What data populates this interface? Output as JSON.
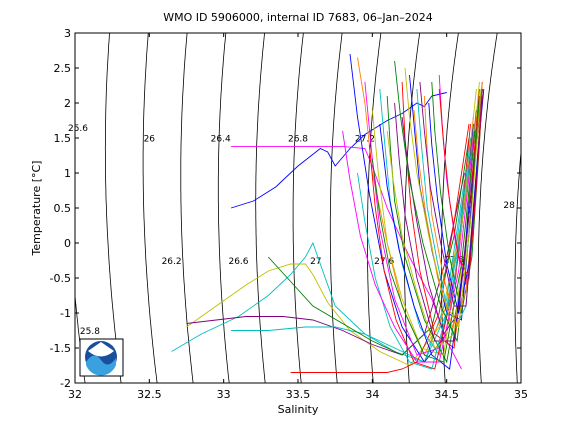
{
  "chart_data": {
    "type": "line",
    "title": "WMO ID 5906000, internal ID 7683, 06–Jan–2024",
    "xlabel": "Salinity",
    "ylabel": "Temperature [°C]",
    "xlim": [
      32,
      35
    ],
    "ylim": [
      -2,
      3
    ],
    "xticks": [
      32,
      32.5,
      33,
      33.5,
      34,
      34.5,
      35
    ],
    "yticks": [
      -2,
      -1.5,
      -1,
      -0.5,
      0,
      0.5,
      1,
      1.5,
      2,
      2.5,
      3
    ],
    "grid": false,
    "density_contours": [
      {
        "label": "25.6",
        "x": 32.02,
        "y": 1.6
      },
      {
        "label": "25.8",
        "x": 32.1,
        "y": -1.3
      },
      {
        "label": "26",
        "x": 32.5,
        "y": 1.45
      },
      {
        "label": "26.2",
        "x": 32.65,
        "y": -0.3
      },
      {
        "label": "26.4",
        "x": 32.98,
        "y": 1.45
      },
      {
        "label": "26.6",
        "x": 33.1,
        "y": -0.3
      },
      {
        "label": "26.8",
        "x": 33.5,
        "y": 1.45
      },
      {
        "label": "27",
        "x": 33.62,
        "y": -0.3
      },
      {
        "label": "27.2",
        "x": 33.95,
        "y": 1.45
      },
      {
        "label": "27.6",
        "x": 34.08,
        "y": -0.3
      },
      {
        "label": "27.8",
        "x": 34.55,
        "y": -0.28
      },
      {
        "label": "28",
        "x": 34.92,
        "y": 0.5
      }
    ],
    "logo": {
      "text": "NOAA"
    },
    "series": [
      {
        "color": "#0000ff",
        "x": [
          33.05,
          33.2,
          33.35,
          33.5,
          33.65,
          33.7,
          33.75,
          33.85,
          33.95,
          34.1,
          34.2,
          34.3,
          34.35,
          34.4,
          34.5
        ],
        "y": [
          0.5,
          0.6,
          0.8,
          1.1,
          1.35,
          1.3,
          1.1,
          1.35,
          1.55,
          1.75,
          1.85,
          2.0,
          1.95,
          2.1,
          2.15
        ]
      },
      {
        "color": "#ff00ff",
        "x": [
          33.05,
          33.3,
          33.55,
          33.8,
          33.95,
          34.0,
          34.1,
          34.25,
          34.4,
          34.5,
          34.6
        ],
        "y": [
          1.38,
          1.38,
          1.38,
          1.38,
          1.35,
          1.1,
          0.5,
          -0.2,
          -0.8,
          -1.4,
          -1.8
        ]
      },
      {
        "color": "#00bfbf",
        "x": [
          32.65,
          32.85,
          33.1,
          33.3,
          33.45,
          33.55,
          33.6,
          33.65,
          33.75,
          33.95,
          34.15,
          34.35,
          34.5,
          34.6,
          34.7
        ],
        "y": [
          -1.55,
          -1.3,
          -1.05,
          -0.75,
          -0.45,
          -0.2,
          0.0,
          -0.3,
          -0.9,
          -1.3,
          -1.55,
          -1.7,
          -1.0,
          0.5,
          1.8
        ]
      },
      {
        "color": "#bfbf00",
        "x": [
          32.75,
          32.95,
          33.15,
          33.3,
          33.45,
          33.55,
          33.6,
          33.7,
          33.85,
          34.05,
          34.25,
          34.45,
          34.6,
          34.68
        ],
        "y": [
          -1.2,
          -0.9,
          -0.6,
          -0.4,
          -0.3,
          -0.3,
          -0.45,
          -0.85,
          -1.25,
          -1.55,
          -1.75,
          -1.2,
          0.3,
          1.6
        ]
      },
      {
        "color": "#800080",
        "x": [
          32.75,
          32.95,
          33.15,
          33.4,
          33.6,
          33.8,
          34.0,
          34.2,
          34.35,
          34.5,
          34.62
        ],
        "y": [
          -1.15,
          -1.1,
          -1.05,
          -1.05,
          -1.1,
          -1.25,
          -1.45,
          -1.6,
          -1.3,
          -0.2,
          1.0
        ]
      },
      {
        "color": "#00bfbf",
        "x": [
          33.05,
          33.3,
          33.55,
          33.75,
          33.95,
          34.15,
          34.35,
          34.5,
          34.62
        ],
        "y": [
          -1.25,
          -1.25,
          -1.2,
          -1.2,
          -1.3,
          -1.5,
          -1.7,
          -0.8,
          0.9
        ]
      },
      {
        "color": "#ff0000",
        "x": [
          33.45,
          33.7,
          33.95,
          34.1,
          34.2,
          34.3,
          34.45,
          34.55,
          34.65
        ],
        "y": [
          -1.85,
          -1.85,
          -1.85,
          -1.85,
          -1.8,
          -1.7,
          -1.0,
          0.3,
          1.7
        ]
      },
      {
        "color": "#008000",
        "x": [
          33.3,
          33.45,
          33.6,
          33.8,
          34.0,
          34.2,
          34.4,
          34.55,
          34.65
        ],
        "y": [
          -0.2,
          -0.55,
          -0.9,
          -1.15,
          -1.4,
          -1.6,
          -1.2,
          0.1,
          1.5
        ]
      },
      {
        "color": "#ff8000",
        "x": [
          33.9,
          33.95,
          34.0,
          34.1,
          34.2,
          34.35,
          34.5,
          34.62,
          34.7
        ],
        "y": [
          2.65,
          2.0,
          1.0,
          0.0,
          -0.9,
          -1.6,
          -0.9,
          0.5,
          1.9
        ]
      },
      {
        "color": "#0000ff",
        "x": [
          33.85,
          33.9,
          33.98,
          34.08,
          34.2,
          34.35,
          34.5,
          34.6,
          34.68
        ],
        "y": [
          2.7,
          1.8,
          0.7,
          -0.4,
          -1.2,
          -1.7,
          -1.3,
          0.2,
          1.7
        ]
      },
      {
        "color": "#ff00ff",
        "x": [
          33.95,
          34.0,
          34.05,
          34.15,
          34.3,
          34.45,
          34.58,
          34.68
        ],
        "y": [
          2.3,
          1.2,
          0.2,
          -0.8,
          -1.6,
          -1.5,
          -0.2,
          1.8
        ]
      },
      {
        "color": "#00bfbf",
        "x": [
          34.05,
          34.08,
          34.12,
          34.2,
          34.32,
          34.45,
          34.58,
          34.7
        ],
        "y": [
          2.2,
          1.5,
          0.6,
          -0.3,
          -1.2,
          -1.6,
          0.0,
          1.8
        ]
      },
      {
        "color": "#008000",
        "x": [
          34.1,
          34.12,
          34.15,
          34.22,
          34.35,
          34.5,
          34.62,
          34.72
        ],
        "y": [
          2.1,
          1.4,
          0.6,
          -0.2,
          -1.1,
          -1.7,
          -0.3,
          2.0
        ]
      },
      {
        "color": "#bfbf00",
        "x": [
          34.0,
          34.04,
          34.1,
          34.2,
          34.33,
          34.48,
          34.6,
          34.7
        ],
        "y": [
          1.9,
          1.0,
          0.0,
          -0.8,
          -1.5,
          -1.6,
          0.2,
          2.2
        ]
      },
      {
        "color": "#ff0000",
        "x": [
          34.2,
          34.22,
          34.26,
          34.32,
          34.42,
          34.55,
          34.65,
          34.72
        ],
        "y": [
          2.3,
          1.5,
          0.5,
          -0.4,
          -1.3,
          -1.5,
          0.4,
          2.2
        ]
      },
      {
        "color": "#800080",
        "x": [
          34.15,
          34.18,
          34.22,
          34.3,
          34.42,
          34.55,
          34.66,
          34.73
        ],
        "y": [
          2.0,
          1.2,
          0.4,
          -0.5,
          -1.4,
          -1.4,
          0.6,
          2.1
        ]
      },
      {
        "color": "#0000ff",
        "x": [
          34.25,
          34.28,
          34.32,
          34.4,
          34.5,
          34.6,
          34.68,
          34.74
        ],
        "y": [
          2.4,
          1.7,
          0.8,
          -0.1,
          -1.0,
          -1.1,
          0.9,
          2.3
        ]
      },
      {
        "color": "#00bfbf",
        "x": [
          34.3,
          34.33,
          34.37,
          34.44,
          34.54,
          34.63,
          34.7,
          34.74
        ],
        "y": [
          2.2,
          1.4,
          0.5,
          -0.3,
          -1.3,
          -0.9,
          1.0,
          2.1
        ]
      },
      {
        "color": "#ff8000",
        "x": [
          34.35,
          34.37,
          34.4,
          34.48,
          34.57,
          34.65,
          34.71,
          34.74
        ],
        "y": [
          2.1,
          1.3,
          0.4,
          -0.5,
          -1.2,
          -0.5,
          1.2,
          2.2
        ]
      },
      {
        "color": "#008000",
        "x": [
          34.4,
          34.42,
          34.46,
          34.52,
          34.6,
          34.67,
          34.72,
          34.74
        ],
        "y": [
          2.3,
          1.6,
          0.7,
          -0.2,
          -1.0,
          -0.2,
          1.4,
          2.2
        ]
      },
      {
        "color": "#ff00ff",
        "x": [
          34.45,
          34.47,
          34.5,
          34.56,
          34.63,
          34.69,
          34.73
        ],
        "y": [
          2.4,
          1.7,
          0.9,
          0.0,
          -0.6,
          0.5,
          1.9
        ]
      },
      {
        "color": "#0000ff",
        "x": [
          34.05,
          34.1,
          34.18,
          34.28,
          34.4,
          34.52,
          34.62,
          34.7
        ],
        "y": [
          1.7,
          0.8,
          -0.1,
          -0.9,
          -1.6,
          -1.8,
          -0.2,
          1.9
        ]
      },
      {
        "color": "#ff0000",
        "x": [
          33.98,
          34.02,
          34.08,
          34.16,
          34.28,
          34.42,
          34.56,
          34.66
        ],
        "y": [
          1.4,
          0.5,
          -0.4,
          -1.1,
          -1.7,
          -1.8,
          -0.5,
          1.7
        ]
      },
      {
        "color": "#bfbf00",
        "x": [
          34.1,
          34.14,
          34.2,
          34.3,
          34.42,
          34.55,
          34.65,
          34.72
        ],
        "y": [
          1.6,
          0.9,
          0.1,
          -0.7,
          -1.5,
          -1.3,
          0.7,
          2.3
        ]
      },
      {
        "color": "#800080",
        "x": [
          34.2,
          34.24,
          34.3,
          34.38,
          34.48,
          34.58,
          34.67,
          34.73
        ],
        "y": [
          1.8,
          1.1,
          0.3,
          -0.6,
          -1.3,
          -1.0,
          0.8,
          2.0
        ]
      },
      {
        "color": "#008000",
        "x": [
          34.0,
          34.05,
          34.12,
          34.22,
          34.35,
          34.48,
          34.6,
          34.69
        ],
        "y": [
          1.2,
          0.4,
          -0.4,
          -1.0,
          -1.6,
          -1.7,
          -0.3,
          1.6
        ]
      },
      {
        "color": "#00bfbf",
        "x": [
          33.9,
          33.95,
          34.02,
          34.12,
          34.25,
          34.4,
          34.55,
          34.66
        ],
        "y": [
          1.0,
          0.3,
          -0.5,
          -1.2,
          -1.7,
          -1.8,
          -0.6,
          1.5
        ]
      },
      {
        "color": "#ff8000",
        "x": [
          34.28,
          34.31,
          34.36,
          34.44,
          34.54,
          34.63,
          34.7,
          34.74
        ],
        "y": [
          1.9,
          1.2,
          0.4,
          -0.5,
          -1.2,
          -0.7,
          1.0,
          2.3
        ]
      },
      {
        "color": "#0000ff",
        "x": [
          34.38,
          34.4,
          34.44,
          34.5,
          34.58,
          34.65,
          34.71,
          34.75
        ],
        "y": [
          2.0,
          1.4,
          0.6,
          -0.3,
          -1.0,
          -0.3,
          1.3,
          2.2
        ]
      },
      {
        "color": "#ff00ff",
        "x": [
          33.8,
          33.85,
          33.92,
          34.02,
          34.15,
          34.3,
          34.45,
          34.58,
          34.68
        ],
        "y": [
          1.6,
          0.9,
          0.1,
          -0.6,
          -1.2,
          -1.7,
          -1.7,
          -0.4,
          1.5
        ]
      },
      {
        "color": "#ff0000",
        "x": [
          34.45,
          34.48,
          34.52,
          34.58,
          34.65,
          34.7,
          34.74
        ],
        "y": [
          2.2,
          1.4,
          0.6,
          -0.2,
          -0.5,
          0.8,
          2.1
        ]
      },
      {
        "color": "#008000",
        "x": [
          34.15,
          34.19,
          34.25,
          34.34,
          34.46,
          34.57,
          34.66,
          34.72
        ],
        "y": [
          2.6,
          1.8,
          0.9,
          0.0,
          -0.9,
          -1.4,
          0.3,
          2.1
        ]
      },
      {
        "color": "#bfbf00",
        "x": [
          34.22,
          34.25,
          34.3,
          34.38,
          34.48,
          34.58,
          34.67,
          34.73
        ],
        "y": [
          2.5,
          1.8,
          1.0,
          0.1,
          -0.8,
          -1.2,
          0.5,
          2.2
        ]
      },
      {
        "color": "#800080",
        "x": [
          34.32,
          34.35,
          34.39,
          34.46,
          34.55,
          34.63,
          34.7,
          34.74
        ],
        "y": [
          2.3,
          1.6,
          0.8,
          0.0,
          -0.9,
          -0.9,
          0.9,
          2.2
        ]
      }
    ]
  }
}
